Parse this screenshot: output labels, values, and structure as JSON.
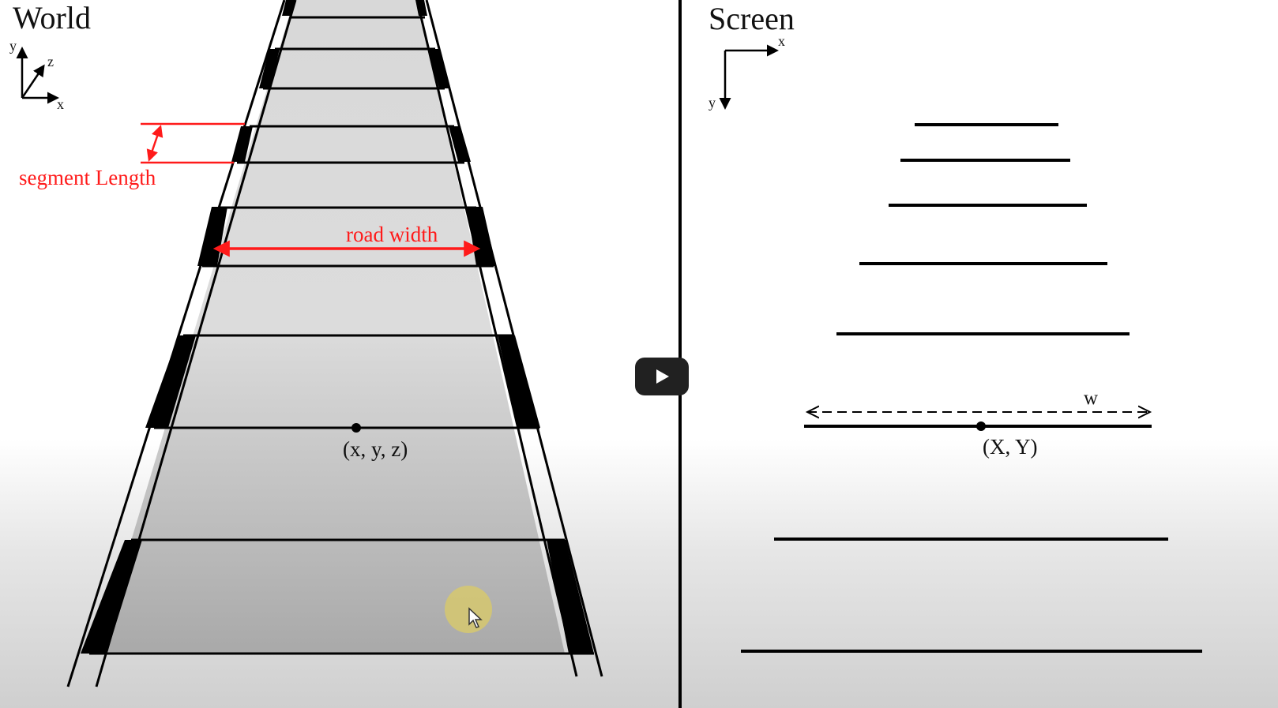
{
  "world_panel": {
    "title": "World",
    "axis_labels": {
      "y": "y",
      "z": "z",
      "x": "x"
    },
    "segment_length_label": "segment Length",
    "road_width_label": "road width",
    "point_label": "(x, y, z)"
  },
  "screen_panel": {
    "title": "Screen",
    "axis_labels": {
      "x": "x",
      "y": "y"
    },
    "width_label": "w",
    "point_label": "(X, Y)"
  },
  "video": {
    "play_icon": "play-icon",
    "play_button_color": "#212121"
  },
  "colors": {
    "annotation": "#ff1a1a",
    "line": "#000000"
  }
}
